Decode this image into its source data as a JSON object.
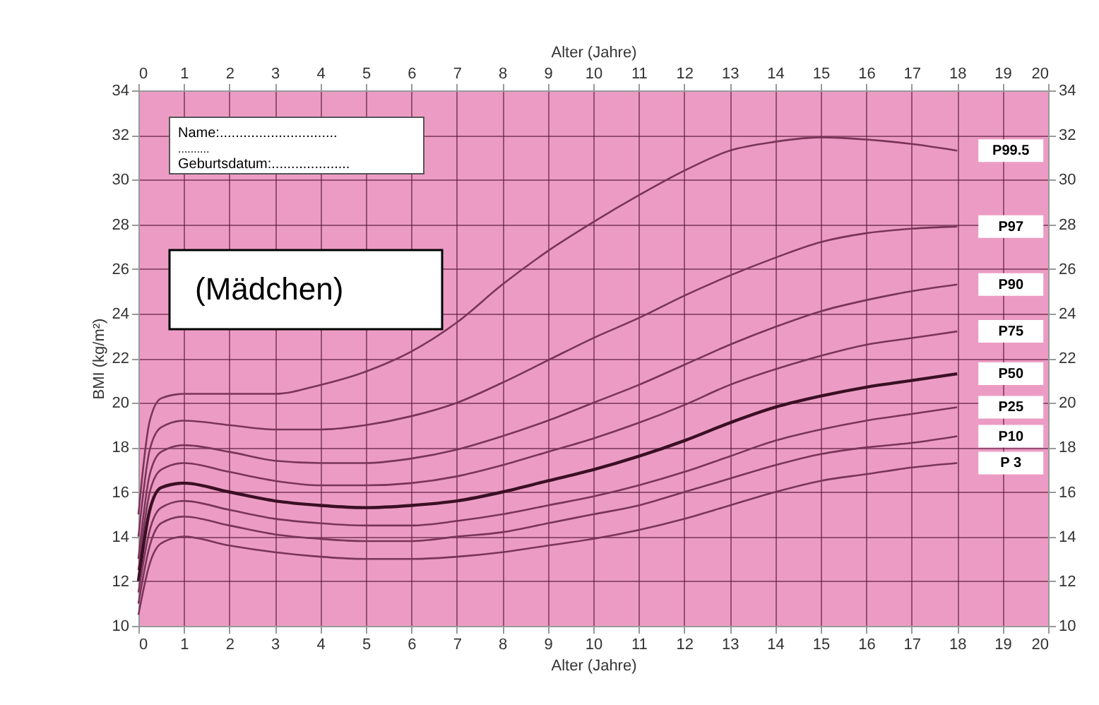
{
  "chart_data": {
    "type": "line",
    "xlabel": "Alter (Jahre)",
    "x2label": "Alter (Jahre)",
    "ylabel": "BMI (kg/m²)",
    "x": [
      0,
      0.25,
      0.5,
      1,
      2,
      3,
      4,
      5,
      6,
      7,
      8,
      9,
      10,
      11,
      12,
      13,
      14,
      15,
      16,
      17,
      18
    ],
    "series": [
      {
        "name": "P99.5",
        "color": "#7a3558",
        "values": [
          15.0,
          19.2,
          20.2,
          20.4,
          20.4,
          20.4,
          20.8,
          21.4,
          22.3,
          23.6,
          25.3,
          26.8,
          28.1,
          29.3,
          30.4,
          31.3,
          31.7,
          31.9,
          31.8,
          31.6,
          31.3
        ]
      },
      {
        "name": "P97",
        "color": "#7a3558",
        "values": [
          14.0,
          17.9,
          18.9,
          19.2,
          19.0,
          18.8,
          18.8,
          19.0,
          19.4,
          20.0,
          20.9,
          21.9,
          22.9,
          23.8,
          24.8,
          25.7,
          26.5,
          27.2,
          27.6,
          27.8,
          27.9
        ]
      },
      {
        "name": "P90",
        "color": "#7a3558",
        "values": [
          13.0,
          16.8,
          17.8,
          18.1,
          17.8,
          17.4,
          17.3,
          17.3,
          17.5,
          17.9,
          18.5,
          19.2,
          20.0,
          20.8,
          21.7,
          22.6,
          23.4,
          24.1,
          24.6,
          25.0,
          25.3
        ]
      },
      {
        "name": "P75",
        "color": "#7a3558",
        "values": [
          12.5,
          16.0,
          17.0,
          17.3,
          16.9,
          16.5,
          16.3,
          16.3,
          16.4,
          16.7,
          17.2,
          17.8,
          18.4,
          19.1,
          19.9,
          20.8,
          21.5,
          22.1,
          22.6,
          22.9,
          23.2
        ]
      },
      {
        "name": "P50",
        "color": "#3a0f24",
        "values": [
          12.0,
          15.2,
          16.2,
          16.4,
          16.0,
          15.6,
          15.4,
          15.3,
          15.4,
          15.6,
          16.0,
          16.5,
          17.0,
          17.6,
          18.3,
          19.1,
          19.8,
          20.3,
          20.7,
          21.0,
          21.3
        ]
      },
      {
        "name": "P25",
        "color": "#7a3558",
        "values": [
          11.5,
          14.3,
          15.3,
          15.6,
          15.2,
          14.8,
          14.6,
          14.5,
          14.5,
          14.7,
          15.0,
          15.4,
          15.8,
          16.3,
          16.9,
          17.6,
          18.3,
          18.8,
          19.2,
          19.5,
          19.8
        ]
      },
      {
        "name": "P10",
        "color": "#7a3558",
        "values": [
          11.0,
          13.6,
          14.6,
          14.9,
          14.5,
          14.1,
          13.9,
          13.8,
          13.8,
          14.0,
          14.2,
          14.6,
          15.0,
          15.4,
          16.0,
          16.6,
          17.2,
          17.7,
          18.0,
          18.2,
          18.5
        ]
      },
      {
        "name": "P 3",
        "color": "#7a3558",
        "values": [
          10.5,
          12.8,
          13.7,
          14.0,
          13.6,
          13.3,
          13.1,
          13.0,
          13.0,
          13.1,
          13.3,
          13.6,
          13.9,
          14.3,
          14.8,
          15.4,
          16.0,
          16.5,
          16.8,
          17.1,
          17.3
        ]
      }
    ],
    "xlim": [
      0,
      20
    ],
    "xticks": [
      0,
      1,
      2,
      3,
      4,
      5,
      6,
      7,
      8,
      9,
      10,
      11,
      12,
      13,
      14,
      15,
      16,
      17,
      18,
      19,
      20
    ],
    "x2lim": [
      0,
      20
    ],
    "x2ticks": [
      0,
      1,
      2,
      3,
      4,
      5,
      6,
      7,
      8,
      9,
      10,
      11,
      12,
      13,
      14,
      15,
      16,
      17,
      18,
      19,
      20
    ],
    "ylim": [
      10,
      34
    ],
    "yticks": [
      10,
      12,
      14,
      16,
      18,
      20,
      22,
      24,
      26,
      28,
      30,
      32,
      34
    ],
    "y2lim": [
      10,
      34
    ],
    "y2ticks": [
      10,
      12,
      14,
      16,
      18,
      20,
      22,
      24,
      26,
      28,
      30,
      32,
      34
    ],
    "grid": true,
    "legend": false,
    "annotations": [
      "Name:..............................",
      "..........",
      "Geburtsdatum:....................",
      "(Mädchen)"
    ]
  }
}
